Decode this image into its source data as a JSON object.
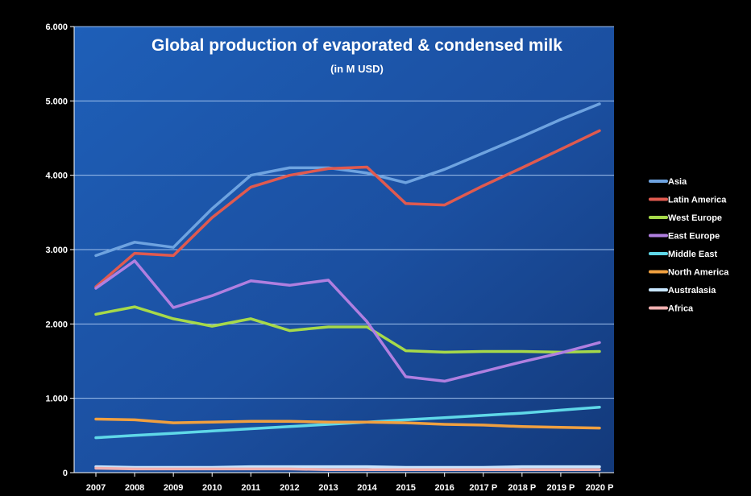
{
  "chart_data": {
    "type": "line",
    "title": "Global production of evaporated & condensed milk",
    "subtitle": "(in M USD)",
    "categories": [
      "2007",
      "2008",
      "2009",
      "2010",
      "2011",
      "2012",
      "2013",
      "2014",
      "2015",
      "2016",
      "2017 P",
      "2018 P",
      "2019 P",
      "2020 P"
    ],
    "ylim": [
      0,
      6000
    ],
    "yticks": [
      0,
      1000,
      2000,
      3000,
      4000,
      5000,
      6000
    ],
    "ytick_labels": [
      "0",
      "1.000",
      "2.000",
      "3.000",
      "4.000",
      "5.000",
      "6.000"
    ],
    "grid": true,
    "legend_position": "right",
    "series": [
      {
        "name": "Asia",
        "color": "#6ea3e0",
        "values": [
          2920,
          3100,
          3030,
          3550,
          4000,
          4100,
          4100,
          4030,
          3900,
          4080,
          4300,
          4520,
          4750,
          4960
        ]
      },
      {
        "name": "Latin America",
        "color": "#e05a4f",
        "values": [
          2500,
          2950,
          2920,
          3430,
          3840,
          4000,
          4090,
          4110,
          3620,
          3600,
          3860,
          4100,
          4350,
          4600
        ]
      },
      {
        "name": "West Europe",
        "color": "#a6d94a",
        "values": [
          2130,
          2230,
          2070,
          1970,
          2070,
          1910,
          1960,
          1960,
          1640,
          1620,
          1630,
          1630,
          1620,
          1630
        ]
      },
      {
        "name": "East Europe",
        "color": "#b07fe0",
        "values": [
          2480,
          2850,
          2220,
          2380,
          2580,
          2520,
          2590,
          2030,
          1290,
          1230,
          1360,
          1490,
          1610,
          1750
        ]
      },
      {
        "name": "Middle East",
        "color": "#5fd8e8",
        "values": [
          470,
          500,
          530,
          560,
          590,
          620,
          650,
          680,
          710,
          740,
          770,
          800,
          840,
          880
        ]
      },
      {
        "name": "North America",
        "color": "#f0a040",
        "values": [
          720,
          710,
          670,
          680,
          690,
          690,
          680,
          680,
          670,
          650,
          640,
          620,
          610,
          600
        ]
      },
      {
        "name": "Australasia",
        "color": "#c8e6ff",
        "values": [
          80,
          70,
          70,
          70,
          80,
          80,
          80,
          80,
          70,
          70,
          70,
          80,
          80,
          80
        ]
      },
      {
        "name": "Africa",
        "color": "#f0b0b0",
        "values": [
          60,
          50,
          50,
          50,
          50,
          50,
          40,
          40,
          40,
          40,
          40,
          40,
          40,
          40
        ]
      }
    ]
  }
}
